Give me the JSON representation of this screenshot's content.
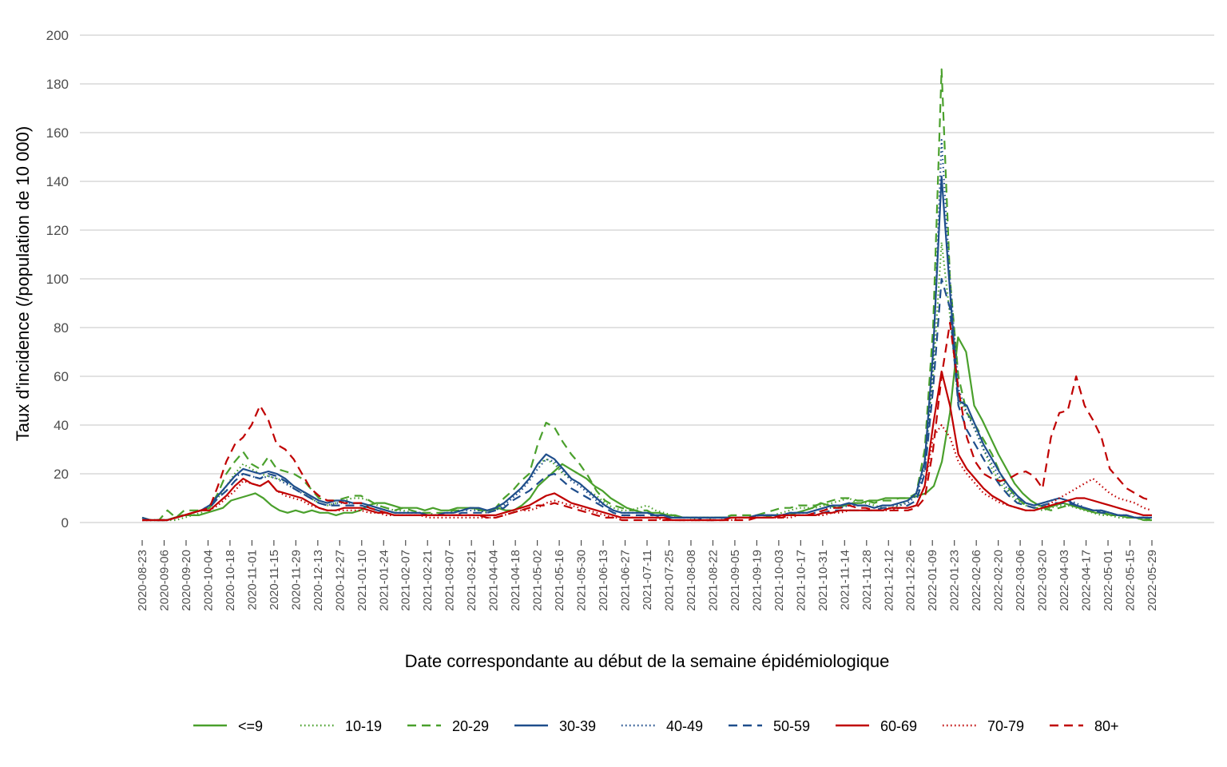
{
  "chart_data": {
    "type": "line",
    "title": "",
    "xlabel": "Date correspondante au début de la semaine épidémiologique",
    "ylabel": "Taux d'incidence (/population de 10 000)",
    "ylim": [
      0,
      200
    ],
    "yticks": [
      0,
      20,
      40,
      60,
      80,
      100,
      120,
      140,
      160,
      180,
      200
    ],
    "grid": "horizontal",
    "legend_position": "bottom",
    "x_tick_labels": [
      "2020-08-23",
      "2020-09-06",
      "2020-09-20",
      "2020-10-04",
      "2020-10-18",
      "2020-11-01",
      "2020-11-15",
      "2020-11-29",
      "2020-12-13",
      "2020-12-27",
      "2021-01-10",
      "2021-01-24",
      "2021-02-07",
      "2021-02-21",
      "2021-03-07",
      "2021-03-21",
      "2021-04-04",
      "2021-04-18",
      "2021-05-02",
      "2021-05-16",
      "2021-05-30",
      "2021-06-13",
      "2021-06-27",
      "2021-07-11",
      "2021-07-25",
      "2021-08-08",
      "2021-08-22",
      "2021-09-05",
      "2021-09-19",
      "2021-10-03",
      "2021-10-17",
      "2021-10-31",
      "2021-11-14",
      "2021-11-28",
      "2021-12-12",
      "2021-12-26",
      "2022-01-09",
      "2022-01-23",
      "2022-02-06",
      "2022-02-20",
      "2022-03-06",
      "2022-03-20",
      "2022-04-03",
      "2022-04-17",
      "2022-05-01",
      "2022-05-15",
      "2022-05-29"
    ],
    "series": [
      {
        "name": "<=9",
        "color": "#4aa02c",
        "dash": "solid",
        "values": [
          2,
          1,
          1,
          1,
          2,
          3,
          3,
          3,
          4,
          5,
          6,
          9,
          10,
          11,
          12,
          10,
          7,
          5,
          4,
          5,
          4,
          5,
          4,
          4,
          3,
          4,
          4,
          5,
          7,
          8,
          8,
          7,
          6,
          6,
          6,
          5,
          6,
          5,
          5,
          6,
          6,
          6,
          5,
          5,
          6,
          5,
          5,
          7,
          10,
          15,
          18,
          21,
          24,
          22,
          20,
          18,
          15,
          13,
          10,
          8,
          6,
          5,
          4,
          4,
          4,
          3,
          3,
          2,
          2,
          2,
          2,
          2,
          2,
          2,
          2,
          2,
          2,
          2,
          3,
          3,
          3,
          4,
          5,
          6,
          8,
          7,
          6,
          7,
          8,
          8,
          9,
          9,
          10,
          10,
          10,
          10,
          11,
          12,
          15,
          25,
          45,
          76,
          70,
          48,
          42,
          35,
          28,
          22,
          16,
          12,
          9,
          7,
          6,
          7,
          8,
          7,
          6,
          5,
          4,
          4,
          3,
          3,
          2,
          2,
          1,
          1
        ]
      },
      {
        "name": "10-19",
        "color": "#4aa02c",
        "dash": "dot",
        "values": [
          1,
          1,
          1,
          1,
          1,
          2,
          3,
          4,
          6,
          10,
          15,
          20,
          24,
          22,
          20,
          19,
          18,
          17,
          15,
          13,
          10,
          8,
          7,
          8,
          9,
          10,
          10,
          9,
          7,
          6,
          5,
          5,
          4,
          4,
          4,
          3,
          4,
          4,
          5,
          6,
          5,
          4,
          5,
          8,
          11,
          14,
          18,
          24,
          26,
          24,
          20,
          18,
          16,
          13,
          11,
          8,
          6,
          5,
          5,
          6,
          7,
          5,
          4,
          3,
          2,
          2,
          1,
          1,
          2,
          2,
          2,
          2,
          2,
          3,
          3,
          3,
          4,
          5,
          6,
          6,
          6,
          7,
          8,
          9,
          10,
          8,
          8,
          7,
          6,
          6,
          7,
          9,
          12,
          25,
          60,
          115,
          85,
          50,
          45,
          38,
          30,
          22,
          16,
          12,
          9,
          7,
          6,
          5,
          6,
          7,
          7,
          6,
          5,
          4,
          3,
          3,
          2,
          2,
          2,
          1,
          1
        ]
      },
      {
        "name": "20-29",
        "color": "#4aa02c",
        "dash": "dash",
        "values": [
          2,
          1,
          1,
          5,
          2,
          5,
          5,
          5,
          6,
          12,
          20,
          25,
          29,
          24,
          22,
          27,
          22,
          21,
          20,
          18,
          14,
          10,
          9,
          9,
          10,
          11,
          11,
          9,
          7,
          6,
          5,
          6,
          5,
          4,
          4,
          4,
          4,
          5,
          5,
          6,
          5,
          5,
          6,
          10,
          13,
          17,
          20,
          32,
          41,
          39,
          33,
          28,
          24,
          19,
          13,
          9,
          7,
          6,
          5,
          5,
          5,
          3,
          3,
          2,
          2,
          2,
          2,
          2,
          2,
          2,
          3,
          3,
          3,
          3,
          4,
          5,
          6,
          6,
          7,
          7,
          7,
          8,
          9,
          10,
          10,
          9,
          9,
          8,
          9,
          9,
          10,
          10,
          12,
          30,
          80,
          186,
          100,
          60,
          45,
          40,
          34,
          28,
          20,
          14,
          10,
          7,
          6,
          6,
          5,
          6,
          7,
          7,
          6,
          5,
          4,
          3,
          3,
          2,
          2,
          2,
          1
        ]
      },
      {
        "name": "30-39",
        "color": "#1f4e8c",
        "dash": "solid",
        "values": [
          2,
          1,
          1,
          1,
          2,
          3,
          4,
          5,
          7,
          11,
          15,
          19,
          22,
          21,
          20,
          21,
          20,
          18,
          15,
          13,
          11,
          9,
          8,
          9,
          9,
          8,
          8,
          7,
          6,
          5,
          4,
          4,
          4,
          4,
          3,
          3,
          4,
          4,
          5,
          6,
          6,
          5,
          6,
          8,
          11,
          14,
          18,
          24,
          28,
          26,
          22,
          18,
          16,
          13,
          10,
          7,
          5,
          4,
          4,
          4,
          4,
          3,
          3,
          2,
          2,
          2,
          2,
          2,
          2,
          2,
          2,
          2,
          2,
          3,
          3,
          3,
          3,
          4,
          4,
          4,
          5,
          6,
          7,
          7,
          8,
          7,
          7,
          6,
          7,
          7,
          8,
          9,
          12,
          25,
          70,
          142,
          95,
          50,
          48,
          40,
          32,
          26,
          20,
          15,
          11,
          8,
          7,
          8,
          9,
          10,
          9,
          7,
          6,
          5,
          5,
          4,
          3,
          3,
          2,
          2,
          2
        ]
      },
      {
        "name": "40-49",
        "color": "#1f4e8c",
        "dash": "dot",
        "values": [
          1,
          1,
          1,
          1,
          2,
          3,
          4,
          5,
          7,
          11,
          15,
          19,
          20,
          19,
          18,
          19,
          18,
          16,
          14,
          12,
          10,
          8,
          7,
          8,
          8,
          8,
          8,
          7,
          6,
          5,
          4,
          4,
          4,
          4,
          3,
          3,
          4,
          4,
          5,
          5,
          5,
          4,
          5,
          7,
          10,
          13,
          17,
          22,
          26,
          25,
          21,
          17,
          15,
          12,
          9,
          7,
          5,
          4,
          4,
          4,
          4,
          3,
          3,
          2,
          2,
          2,
          2,
          2,
          2,
          2,
          2,
          2,
          2,
          3,
          3,
          3,
          3,
          4,
          4,
          4,
          5,
          6,
          6,
          6,
          7,
          7,
          7,
          6,
          7,
          7,
          7,
          8,
          11,
          22,
          65,
          157,
          100,
          55,
          45,
          38,
          30,
          24,
          18,
          13,
          10,
          8,
          7,
          8,
          9,
          10,
          9,
          8,
          6,
          5,
          5,
          4,
          3,
          3,
          2,
          2,
          2
        ]
      },
      {
        "name": "50-59",
        "color": "#1f4e8c",
        "dash": "dash",
        "values": [
          1,
          1,
          1,
          1,
          2,
          3,
          4,
          5,
          6,
          10,
          13,
          17,
          20,
          19,
          18,
          20,
          19,
          17,
          14,
          12,
          10,
          8,
          7,
          7,
          7,
          7,
          7,
          6,
          5,
          4,
          3,
          3,
          3,
          3,
          3,
          3,
          3,
          3,
          4,
          4,
          4,
          4,
          5,
          6,
          9,
          11,
          13,
          16,
          19,
          20,
          17,
          14,
          12,
          10,
          8,
          6,
          4,
          3,
          3,
          3,
          3,
          3,
          2,
          2,
          2,
          2,
          2,
          1,
          1,
          2,
          2,
          2,
          2,
          2,
          3,
          3,
          3,
          3,
          3,
          3,
          4,
          4,
          5,
          5,
          5,
          5,
          5,
          5,
          6,
          6,
          6,
          7,
          9,
          20,
          55,
          100,
          88,
          48,
          38,
          32,
          26,
          20,
          15,
          11,
          8,
          7,
          6,
          7,
          8,
          8,
          8,
          7,
          6,
          5,
          4,
          4,
          3,
          3,
          2,
          2,
          2
        ]
      },
      {
        "name": "60-69",
        "color": "#c00000",
        "dash": "solid",
        "values": [
          1,
          1,
          1,
          1,
          2,
          3,
          4,
          5,
          5,
          8,
          11,
          15,
          18,
          16,
          15,
          17,
          13,
          12,
          11,
          10,
          8,
          6,
          5,
          5,
          6,
          6,
          6,
          5,
          4,
          4,
          3,
          3,
          3,
          3,
          3,
          3,
          3,
          3,
          3,
          3,
          3,
          3,
          3,
          4,
          5,
          6,
          7,
          9,
          11,
          12,
          10,
          8,
          7,
          6,
          5,
          4,
          3,
          2,
          2,
          2,
          2,
          2,
          2,
          1,
          1,
          1,
          1,
          1,
          1,
          1,
          2,
          2,
          2,
          2,
          2,
          2,
          3,
          3,
          3,
          3,
          3,
          4,
          4,
          5,
          5,
          5,
          5,
          5,
          5,
          6,
          6,
          6,
          7,
          15,
          40,
          62,
          48,
          28,
          22,
          18,
          14,
          11,
          9,
          7,
          6,
          5,
          5,
          6,
          7,
          8,
          9,
          10,
          10,
          9,
          8,
          7,
          6,
          5,
          4,
          3,
          3
        ]
      },
      {
        "name": "70-79",
        "color": "#c00000",
        "dash": "dot",
        "values": [
          1,
          1,
          1,
          1,
          2,
          3,
          4,
          5,
          5,
          7,
          10,
          13,
          17,
          16,
          15,
          17,
          13,
          11,
          10,
          9,
          7,
          6,
          5,
          5,
          5,
          5,
          5,
          4,
          4,
          3,
          3,
          3,
          3,
          3,
          2,
          2,
          2,
          2,
          2,
          2,
          2,
          2,
          2,
          3,
          4,
          5,
          5,
          6,
          8,
          9,
          8,
          7,
          6,
          5,
          4,
          3,
          2,
          2,
          2,
          2,
          2,
          2,
          1,
          1,
          1,
          1,
          1,
          1,
          1,
          1,
          1,
          2,
          2,
          2,
          2,
          2,
          2,
          2,
          3,
          3,
          3,
          3,
          4,
          4,
          5,
          5,
          5,
          5,
          5,
          5,
          6,
          6,
          7,
          15,
          35,
          40,
          35,
          25,
          20,
          16,
          12,
          10,
          8,
          7,
          6,
          5,
          5,
          6,
          8,
          10,
          12,
          14,
          16,
          18,
          15,
          12,
          10,
          9,
          8,
          6,
          5
        ]
      },
      {
        "name": "80+",
        "color": "#c00000",
        "dash": "dash",
        "values": [
          1,
          1,
          1,
          1,
          2,
          3,
          4,
          5,
          6,
          15,
          25,
          32,
          35,
          40,
          48,
          42,
          32,
          30,
          26,
          20,
          14,
          11,
          9,
          9,
          8,
          8,
          8,
          6,
          5,
          4,
          3,
          3,
          3,
          3,
          3,
          3,
          3,
          3,
          3,
          3,
          3,
          2,
          2,
          3,
          4,
          5,
          6,
          7,
          7,
          8,
          7,
          6,
          5,
          4,
          3,
          2,
          2,
          1,
          1,
          1,
          1,
          1,
          1,
          1,
          1,
          1,
          1,
          1,
          1,
          1,
          1,
          1,
          1,
          2,
          2,
          2,
          2,
          3,
          3,
          3,
          4,
          5,
          6,
          6,
          7,
          6,
          6,
          5,
          5,
          5,
          5,
          5,
          6,
          10,
          30,
          60,
          82,
          55,
          35,
          25,
          20,
          18,
          17,
          18,
          20,
          21,
          19,
          14,
          35,
          45,
          46,
          60,
          48,
          42,
          35,
          22,
          18,
          14,
          12,
          10,
          9
        ]
      }
    ]
  }
}
